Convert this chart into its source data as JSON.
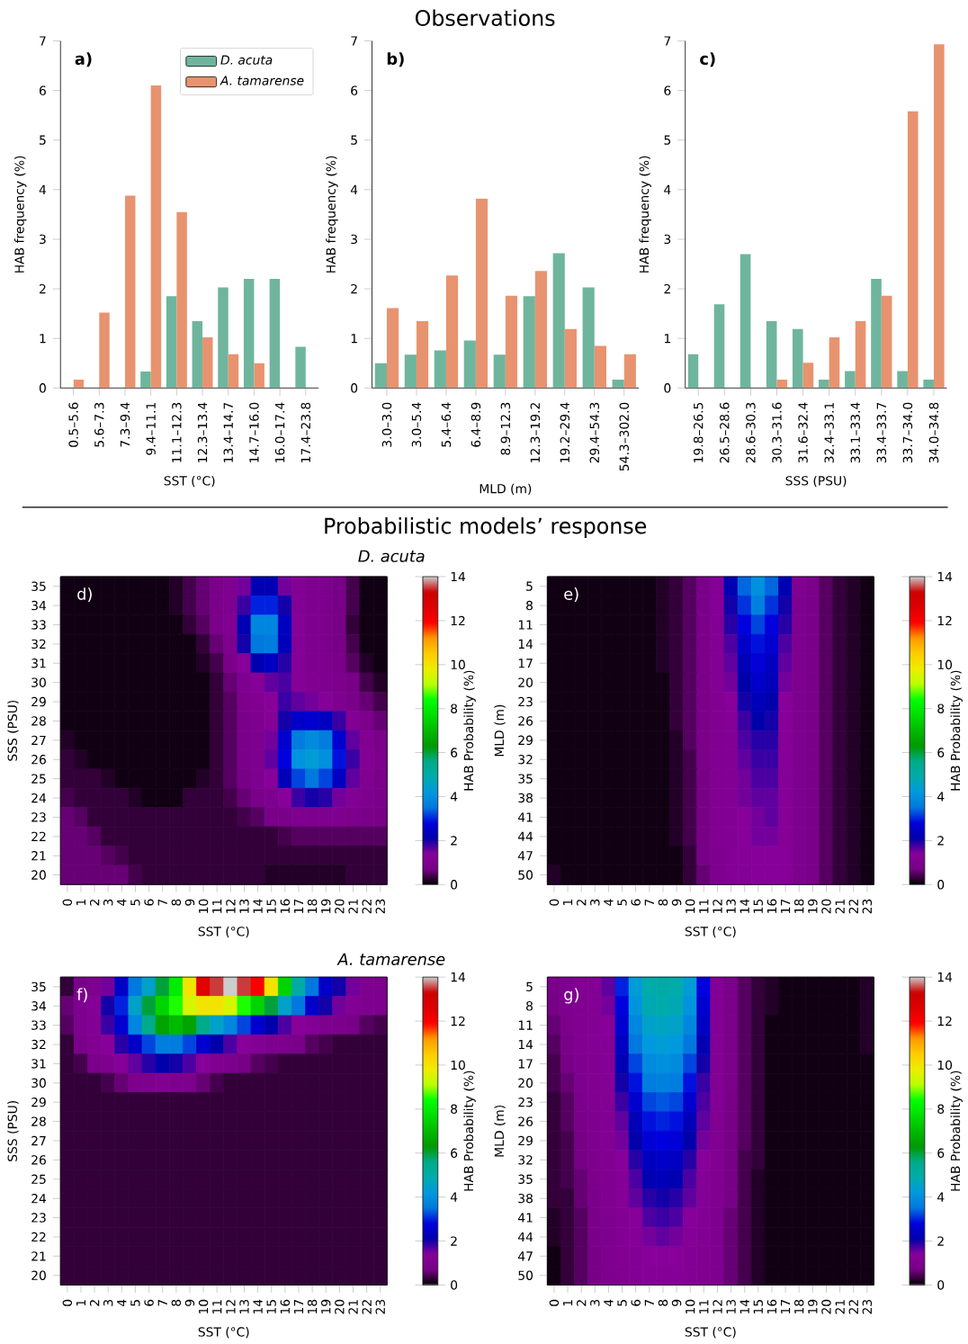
{
  "chart_data": [
    {
      "type": "bar",
      "categories": [
        "0.5–5.6",
        "5.6–7.3",
        "7.3–9.4",
        "9.4–11.1",
        "11.1–12.3",
        "12.3–13.4",
        "13.4–14.7",
        "14.7–16.0",
        "16.0–17.4",
        "17.4–23.8"
      ],
      "series": [
        {
          "name": "D. acuta",
          "color": "#6fb59d",
          "values": [
            0,
            0,
            0,
            0.33,
            1.85,
            1.35,
            2.03,
            2.2,
            2.2,
            0.83
          ]
        },
        {
          "name": "A. tamarense",
          "color": "#e8936f",
          "values": [
            0.17,
            1.52,
            3.88,
            6.1,
            3.55,
            1.02,
            0.68,
            0.5,
            0,
            0
          ]
        }
      ],
      "ylim": [
        0,
        7
      ],
      "yticks": [
        0,
        1,
        2,
        3,
        4,
        5,
        6,
        7
      ],
      "xlabel": "SST (°C)",
      "ylabel": "HAB frequency (%)",
      "legend": "top right",
      "annotations": [
        "a)"
      ]
    },
    {
      "type": "bar",
      "title": "Observations",
      "categories": [
        "3.0–3.0",
        "3.0–5.4",
        "5.4–6.4",
        "6.4–8.9",
        "8.9–12.3",
        "12.3–19.2",
        "19.2–29.4",
        "29.4–54.3",
        "54.3–302.0"
      ],
      "series": [
        {
          "color": "#6fb59d",
          "values": [
            0.5,
            0.67,
            0.76,
            0.96,
            0.67,
            1.85,
            2.72,
            2.03,
            0.17
          ]
        },
        {
          "color": "#e8936f",
          "values": [
            1.61,
            1.35,
            2.27,
            3.82,
            1.86,
            2.36,
            1.19,
            0.85,
            0.68
          ]
        }
      ],
      "ylim": [
        0,
        7
      ],
      "yticks": [
        0,
        1,
        2,
        3,
        4,
        5,
        6,
        7
      ],
      "xlabel": "MLD (m)",
      "ylabel": "HAB frequency (%)",
      "annotations": [
        "b)"
      ]
    },
    {
      "type": "bar",
      "categories": [
        "19.8–26.5",
        "26.5–28.6",
        "28.6–30.3",
        "30.3–31.6",
        "31.6–32.4",
        "32.4–33.1",
        "33.1–33.4",
        "33.4–33.7",
        "33.7–34.0",
        "34.0–34.8"
      ],
      "series": [
        {
          "color": "#6fb59d",
          "values": [
            0.68,
            1.69,
            2.7,
            1.35,
            1.19,
            0.17,
            0.34,
            2.2,
            0.34,
            0.17
          ]
        },
        {
          "color": "#e8936f",
          "values": [
            0,
            0,
            0,
            0.17,
            0.51,
            1.02,
            1.35,
            1.86,
            5.58,
            6.93
          ]
        }
      ],
      "ylim": [
        0,
        7
      ],
      "yticks": [
        0,
        1,
        2,
        3,
        4,
        5,
        6,
        7
      ],
      "xlabel": "SSS (PSU)",
      "ylabel": "HAB frequency (%)",
      "annotations": [
        "c)"
      ]
    },
    {
      "type": "heatmap",
      "title": "Probabilistic models’ response",
      "subtitle": "D. acuta",
      "categories": [
        "0",
        "1",
        "2",
        "3",
        "4",
        "5",
        "6",
        "7",
        "8",
        "9",
        "10",
        "11",
        "12",
        "13",
        "14",
        "15",
        "16",
        "17",
        "18",
        "19",
        "20",
        "21",
        "22",
        "23"
      ],
      "y_categories": [
        "35",
        "34",
        "33",
        "32",
        "31",
        "30",
        "29",
        "28",
        "27",
        "26",
        "25",
        "24",
        "23",
        "22",
        "21",
        "20"
      ],
      "cells": [
        [
          0.1,
          0.1,
          0.1,
          0.1,
          0.1,
          0.1,
          0.1,
          0.1,
          0.2,
          0.4,
          0.6,
          0.8,
          1.0,
          1.5,
          2.2,
          2.2,
          1.5,
          1.2,
          1.0,
          0.9,
          0.7,
          0.4,
          0.1,
          0.1
        ],
        [
          0.1,
          0.1,
          0.1,
          0.1,
          0.1,
          0.1,
          0.1,
          0.1,
          0.2,
          0.4,
          0.6,
          0.8,
          1.0,
          1.8,
          3.0,
          3.0,
          2.0,
          1.2,
          1.0,
          0.9,
          0.7,
          0.4,
          0.1,
          0.1
        ],
        [
          0.1,
          0.1,
          0.1,
          0.1,
          0.1,
          0.1,
          0.1,
          0.1,
          0.1,
          0.3,
          0.5,
          0.8,
          1.1,
          2.2,
          3.8,
          3.8,
          2.4,
          1.3,
          1.0,
          0.9,
          0.7,
          0.3,
          0.1,
          0.1
        ],
        [
          0.1,
          0.1,
          0.1,
          0.1,
          0.1,
          0.1,
          0.1,
          0.1,
          0.1,
          0.1,
          0.3,
          0.6,
          1.0,
          2.0,
          3.5,
          3.6,
          2.3,
          1.3,
          1.0,
          0.9,
          0.7,
          0.4,
          0.1,
          0.1
        ],
        [
          0.1,
          0.1,
          0.1,
          0.1,
          0.1,
          0.1,
          0.1,
          0.1,
          0.1,
          0.1,
          0.2,
          0.4,
          0.8,
          1.4,
          2.2,
          2.4,
          1.9,
          1.3,
          1.0,
          0.9,
          0.8,
          0.5,
          0.2,
          0.1
        ],
        [
          0.1,
          0.1,
          0.1,
          0.1,
          0.1,
          0.1,
          0.1,
          0.1,
          0.1,
          0.1,
          0.1,
          0.3,
          0.6,
          1.0,
          1.3,
          1.6,
          1.7,
          1.3,
          1.1,
          1.0,
          0.9,
          0.7,
          0.4,
          0.2
        ],
        [
          0.1,
          0.1,
          0.1,
          0.1,
          0.1,
          0.1,
          0.1,
          0.1,
          0.1,
          0.1,
          0.1,
          0.3,
          0.5,
          0.9,
          1.1,
          1.4,
          1.8,
          1.6,
          1.5,
          1.3,
          1.0,
          0.8,
          0.6,
          0.4
        ],
        [
          0.1,
          0.1,
          0.1,
          0.1,
          0.1,
          0.1,
          0.1,
          0.1,
          0.1,
          0.1,
          0.1,
          0.3,
          0.5,
          0.8,
          1.0,
          1.3,
          2.0,
          2.5,
          2.6,
          2.4,
          1.8,
          1.2,
          0.9,
          0.6
        ],
        [
          0.2,
          0.1,
          0.1,
          0.1,
          0.1,
          0.1,
          0.1,
          0.1,
          0.1,
          0.1,
          0.1,
          0.3,
          0.5,
          0.8,
          1.0,
          1.5,
          2.6,
          3.6,
          3.9,
          3.6,
          2.6,
          1.6,
          1.1,
          0.8
        ],
        [
          0.3,
          0.2,
          0.1,
          0.1,
          0.1,
          0.1,
          0.1,
          0.1,
          0.1,
          0.1,
          0.1,
          0.3,
          0.5,
          0.8,
          1.0,
          1.6,
          2.8,
          4.1,
          4.3,
          4.0,
          2.9,
          1.8,
          1.2,
          0.9
        ],
        [
          0.3,
          0.3,
          0.3,
          0.2,
          0.1,
          0.1,
          0.1,
          0.1,
          0.1,
          0.1,
          0.2,
          0.3,
          0.5,
          0.7,
          1.0,
          1.4,
          2.3,
          3.2,
          3.5,
          3.2,
          2.4,
          1.6,
          1.1,
          0.8
        ],
        [
          0.4,
          0.3,
          0.3,
          0.3,
          0.3,
          0.2,
          0.1,
          0.1,
          0.1,
          0.3,
          0.3,
          0.3,
          0.4,
          0.6,
          0.8,
          1.0,
          1.4,
          1.8,
          2.0,
          1.9,
          1.5,
          1.2,
          1.0,
          0.8
        ],
        [
          0.6,
          0.5,
          0.3,
          0.3,
          0.3,
          0.3,
          0.3,
          0.3,
          0.3,
          0.3,
          0.3,
          0.3,
          0.3,
          0.4,
          0.5,
          0.7,
          0.8,
          1.0,
          1.0,
          1.0,
          1.0,
          0.9,
          0.8,
          0.7
        ],
        [
          0.6,
          0.6,
          0.5,
          0.3,
          0.3,
          0.3,
          0.3,
          0.3,
          0.3,
          0.3,
          0.3,
          0.3,
          0.3,
          0.3,
          0.3,
          0.3,
          0.4,
          0.5,
          0.5,
          0.5,
          0.5,
          0.5,
          0.5,
          0.5
        ],
        [
          0.6,
          0.6,
          0.6,
          0.5,
          0.4,
          0.3,
          0.3,
          0.3,
          0.3,
          0.3,
          0.3,
          0.3,
          0.3,
          0.3,
          0.3,
          0.3,
          0.3,
          0.3,
          0.3,
          0.3,
          0.3,
          0.3,
          0.3,
          0.3
        ],
        [
          0.6,
          0.6,
          0.6,
          0.6,
          0.6,
          0.4,
          0.3,
          0.3,
          0.3,
          0.3,
          0.3,
          0.3,
          0.3,
          0.3,
          0.3,
          0.2,
          0.2,
          0.2,
          0.2,
          0.2,
          0.2,
          0.3,
          0.3,
          0.3
        ]
      ],
      "clim": [
        0,
        14
      ],
      "cticks": [
        0,
        2,
        4,
        6,
        8,
        10,
        12,
        14
      ],
      "clabel": "HAB Probability (%)",
      "xlabel": "SST (°C)",
      "ylabel": "SSS (PSU)",
      "annotations": [
        "d)"
      ]
    },
    {
      "type": "heatmap",
      "categories": [
        "0",
        "1",
        "2",
        "3",
        "4",
        "5",
        "6",
        "7",
        "8",
        "9",
        "10",
        "11",
        "12",
        "13",
        "14",
        "15",
        "16",
        "17",
        "18",
        "19",
        "20",
        "21",
        "22",
        "23"
      ],
      "y_categories": [
        "5",
        "8",
        "11",
        "14",
        "17",
        "20",
        "23",
        "26",
        "29",
        "32",
        "35",
        "38",
        "41",
        "44",
        "47",
        "50"
      ],
      "cells": [
        [
          0.1,
          0.1,
          0.1,
          0.1,
          0.1,
          0.1,
          0.1,
          0.1,
          0.2,
          0.3,
          0.5,
          0.8,
          1.3,
          2.2,
          3.4,
          4.0,
          3.4,
          2.2,
          1.1,
          0.8,
          0.5,
          0.3,
          0.2,
          0.1
        ],
        [
          0.1,
          0.1,
          0.1,
          0.1,
          0.1,
          0.1,
          0.1,
          0.1,
          0.2,
          0.3,
          0.5,
          0.8,
          1.3,
          2.0,
          3.1,
          3.7,
          3.1,
          2.0,
          1.0,
          0.8,
          0.5,
          0.3,
          0.2,
          0.1
        ],
        [
          0.1,
          0.1,
          0.1,
          0.1,
          0.1,
          0.1,
          0.1,
          0.1,
          0.2,
          0.3,
          0.5,
          0.8,
          1.2,
          1.9,
          2.8,
          3.2,
          2.8,
          1.9,
          1.0,
          0.8,
          0.5,
          0.3,
          0.2,
          0.1
        ],
        [
          0.1,
          0.1,
          0.1,
          0.1,
          0.1,
          0.1,
          0.1,
          0.1,
          0.2,
          0.3,
          0.5,
          0.8,
          1.2,
          1.7,
          2.5,
          2.9,
          2.6,
          1.7,
          1.0,
          0.8,
          0.5,
          0.3,
          0.2,
          0.1
        ],
        [
          0.1,
          0.1,
          0.1,
          0.1,
          0.1,
          0.1,
          0.1,
          0.1,
          0.2,
          0.3,
          0.5,
          0.8,
          1.2,
          1.6,
          2.3,
          2.7,
          2.4,
          1.6,
          1.0,
          0.8,
          0.5,
          0.3,
          0.2,
          0.1
        ],
        [
          0.1,
          0.1,
          0.1,
          0.1,
          0.1,
          0.1,
          0.1,
          0.1,
          0.1,
          0.3,
          0.5,
          0.8,
          1.2,
          1.5,
          2.1,
          2.5,
          2.3,
          1.5,
          1.0,
          0.8,
          0.5,
          0.3,
          0.2,
          0.1
        ],
        [
          0.1,
          0.1,
          0.1,
          0.1,
          0.1,
          0.1,
          0.1,
          0.1,
          0.1,
          0.3,
          0.5,
          0.8,
          1.1,
          1.4,
          2.0,
          2.3,
          2.1,
          1.4,
          1.0,
          0.8,
          0.5,
          0.3,
          0.2,
          0.1
        ],
        [
          0.1,
          0.1,
          0.1,
          0.1,
          0.1,
          0.1,
          0.1,
          0.1,
          0.1,
          0.3,
          0.5,
          0.8,
          1.1,
          1.3,
          1.8,
          2.1,
          2.0,
          1.4,
          1.0,
          0.8,
          0.5,
          0.3,
          0.2,
          0.1
        ],
        [
          0.1,
          0.1,
          0.1,
          0.1,
          0.1,
          0.1,
          0.1,
          0.1,
          0.1,
          0.2,
          0.5,
          0.8,
          1.1,
          1.2,
          1.7,
          1.9,
          1.9,
          1.3,
          1.0,
          0.8,
          0.5,
          0.3,
          0.2,
          0.1
        ],
        [
          0.1,
          0.1,
          0.1,
          0.1,
          0.1,
          0.1,
          0.1,
          0.1,
          0.1,
          0.2,
          0.4,
          0.8,
          1.1,
          1.2,
          1.6,
          1.8,
          1.8,
          1.3,
          1.0,
          0.8,
          0.5,
          0.3,
          0.2,
          0.1
        ],
        [
          0.1,
          0.1,
          0.1,
          0.1,
          0.1,
          0.1,
          0.1,
          0.1,
          0.1,
          0.2,
          0.4,
          0.7,
          1.1,
          1.2,
          1.5,
          1.7,
          1.7,
          1.3,
          1.0,
          0.8,
          0.5,
          0.3,
          0.2,
          0.1
        ],
        [
          0.1,
          0.1,
          0.1,
          0.1,
          0.1,
          0.1,
          0.1,
          0.1,
          0.1,
          0.2,
          0.4,
          0.7,
          1.1,
          1.2,
          1.5,
          1.6,
          1.6,
          1.3,
          1.0,
          0.8,
          0.5,
          0.3,
          0.2,
          0.1
        ],
        [
          0.1,
          0.1,
          0.1,
          0.1,
          0.1,
          0.1,
          0.1,
          0.1,
          0.1,
          0.2,
          0.4,
          0.7,
          1.1,
          1.2,
          1.4,
          1.5,
          1.6,
          1.3,
          1.0,
          0.8,
          0.5,
          0.3,
          0.2,
          0.1
        ],
        [
          0.1,
          0.1,
          0.1,
          0.1,
          0.1,
          0.1,
          0.1,
          0.1,
          0.1,
          0.2,
          0.4,
          0.7,
          1.1,
          1.2,
          1.4,
          1.5,
          1.5,
          1.3,
          1.0,
          0.8,
          0.5,
          0.3,
          0.2,
          0.1
        ],
        [
          0.1,
          0.1,
          0.1,
          0.1,
          0.1,
          0.1,
          0.1,
          0.1,
          0.1,
          0.1,
          0.3,
          0.7,
          1.0,
          1.2,
          1.3,
          1.4,
          1.4,
          1.3,
          1.0,
          0.8,
          0.5,
          0.3,
          0.2,
          0.1
        ],
        [
          0.2,
          0.1,
          0.1,
          0.1,
          0.1,
          0.1,
          0.1,
          0.1,
          0.1,
          0.1,
          0.3,
          0.6,
          1.0,
          1.2,
          1.3,
          1.4,
          1.4,
          1.3,
          1.0,
          0.8,
          0.5,
          0.3,
          0.2,
          0.1
        ]
      ],
      "clim": [
        0,
        14
      ],
      "cticks": [
        0,
        2,
        4,
        6,
        8,
        10,
        12,
        14
      ],
      "clabel": "HAB Probability (%)",
      "xlabel": "SST (°C)",
      "ylabel": "MLD (m)",
      "annotations": [
        "e)"
      ]
    },
    {
      "type": "heatmap",
      "subtitle": "A. tamarense",
      "categories": [
        "0",
        "1",
        "2",
        "3",
        "4",
        "5",
        "6",
        "7",
        "8",
        "9",
        "10",
        "11",
        "12",
        "13",
        "14",
        "15",
        "16",
        "17",
        "18",
        "19",
        "20",
        "21",
        "22",
        "23"
      ],
      "y_categories": [
        "35",
        "34",
        "33",
        "32",
        "31",
        "30",
        "29",
        "28",
        "27",
        "26",
        "25",
        "24",
        "23",
        "22",
        "21",
        "20"
      ],
      "cells": [
        [
          0.3,
          0.8,
          1.0,
          1.5,
          2.5,
          3.5,
          4.5,
          6.0,
          8.0,
          10.0,
          12.5,
          13.5,
          14.0,
          13.5,
          12.0,
          10.0,
          7.5,
          5.0,
          3.5,
          2.5,
          2.0,
          1.5,
          1.0,
          0.9
        ],
        [
          0.6,
          1.0,
          1.3,
          2.0,
          3.0,
          4.5,
          6.0,
          7.5,
          8.5,
          9.5,
          10.0,
          10.0,
          9.5,
          8.5,
          7.5,
          6.0,
          4.5,
          3.5,
          2.5,
          2.0,
          1.5,
          1.2,
          1.0,
          0.9
        ],
        [
          0.5,
          1.0,
          1.2,
          1.8,
          2.6,
          3.8,
          5.5,
          6.5,
          7.0,
          6.5,
          5.5,
          4.5,
          3.8,
          3.2,
          2.6,
          2.1,
          1.7,
          1.4,
          1.2,
          1.0,
          0.9,
          0.7,
          0.5,
          0.4
        ],
        [
          0.3,
          0.8,
          1.1,
          1.4,
          1.9,
          2.5,
          3.2,
          3.6,
          3.6,
          3.2,
          2.6,
          2.1,
          1.7,
          1.4,
          1.2,
          1.0,
          0.9,
          0.8,
          0.5,
          0.4,
          0.3,
          0.3,
          0.3,
          0.3
        ],
        [
          0.3,
          0.4,
          0.8,
          1.0,
          1.3,
          1.6,
          1.9,
          2.1,
          2.0,
          1.7,
          1.4,
          1.1,
          0.9,
          0.7,
          0.5,
          0.4,
          0.3,
          0.3,
          0.3,
          0.3,
          0.3,
          0.3,
          0.3,
          0.3
        ],
        [
          0.3,
          0.3,
          0.3,
          0.4,
          0.6,
          0.9,
          1.0,
          1.1,
          1.0,
          0.9,
          0.6,
          0.4,
          0.3,
          0.3,
          0.3,
          0.3,
          0.3,
          0.3,
          0.3,
          0.3,
          0.3,
          0.3,
          0.3,
          0.3
        ],
        [
          0.3,
          0.3,
          0.3,
          0.3,
          0.3,
          0.3,
          0.3,
          0.3,
          0.3,
          0.3,
          0.3,
          0.3,
          0.3,
          0.3,
          0.3,
          0.3,
          0.3,
          0.3,
          0.3,
          0.3,
          0.3,
          0.3,
          0.3,
          0.3
        ],
        [
          0.3,
          0.3,
          0.3,
          0.3,
          0.3,
          0.3,
          0.3,
          0.3,
          0.3,
          0.3,
          0.3,
          0.3,
          0.3,
          0.3,
          0.3,
          0.3,
          0.3,
          0.3,
          0.3,
          0.3,
          0.3,
          0.3,
          0.3,
          0.3
        ],
        [
          0.3,
          0.3,
          0.3,
          0.3,
          0.3,
          0.3,
          0.3,
          0.3,
          0.3,
          0.3,
          0.3,
          0.3,
          0.3,
          0.3,
          0.3,
          0.3,
          0.3,
          0.3,
          0.3,
          0.3,
          0.3,
          0.3,
          0.3,
          0.3
        ],
        [
          0.3,
          0.3,
          0.3,
          0.3,
          0.3,
          0.3,
          0.3,
          0.3,
          0.3,
          0.3,
          0.3,
          0.3,
          0.3,
          0.3,
          0.3,
          0.3,
          0.3,
          0.3,
          0.3,
          0.3,
          0.3,
          0.3,
          0.3,
          0.3
        ],
        [
          0.3,
          0.3,
          0.3,
          0.3,
          0.3,
          0.3,
          0.3,
          0.3,
          0.3,
          0.3,
          0.3,
          0.3,
          0.3,
          0.3,
          0.3,
          0.3,
          0.3,
          0.3,
          0.3,
          0.3,
          0.3,
          0.3,
          0.3,
          0.3
        ],
        [
          0.3,
          0.3,
          0.3,
          0.3,
          0.3,
          0.3,
          0.3,
          0.3,
          0.3,
          0.3,
          0.3,
          0.3,
          0.3,
          0.3,
          0.3,
          0.3,
          0.3,
          0.3,
          0.3,
          0.3,
          0.3,
          0.3,
          0.3,
          0.3
        ],
        [
          0.3,
          0.3,
          0.3,
          0.3,
          0.3,
          0.3,
          0.3,
          0.3,
          0.3,
          0.3,
          0.3,
          0.3,
          0.3,
          0.3,
          0.3,
          0.3,
          0.3,
          0.3,
          0.3,
          0.3,
          0.3,
          0.3,
          0.3,
          0.3
        ],
        [
          0.3,
          0.3,
          0.3,
          0.3,
          0.3,
          0.3,
          0.3,
          0.3,
          0.3,
          0.3,
          0.3,
          0.3,
          0.3,
          0.3,
          0.3,
          0.3,
          0.3,
          0.3,
          0.3,
          0.3,
          0.3,
          0.3,
          0.3,
          0.3
        ],
        [
          0.3,
          0.3,
          0.3,
          0.3,
          0.3,
          0.3,
          0.3,
          0.3,
          0.3,
          0.3,
          0.3,
          0.3,
          0.3,
          0.3,
          0.3,
          0.3,
          0.3,
          0.3,
          0.3,
          0.3,
          0.3,
          0.3,
          0.3,
          0.3
        ],
        [
          0.3,
          0.3,
          0.3,
          0.3,
          0.3,
          0.3,
          0.3,
          0.3,
          0.3,
          0.3,
          0.3,
          0.3,
          0.3,
          0.3,
          0.3,
          0.3,
          0.3,
          0.3,
          0.3,
          0.3,
          0.3,
          0.3,
          0.3,
          0.3
        ]
      ],
      "clim": [
        0,
        14
      ],
      "cticks": [
        0,
        2,
        4,
        6,
        8,
        10,
        12,
        14
      ],
      "clabel": "HAB Probability (%)",
      "xlabel": "SST (°C)",
      "ylabel": "SSS (PSU)",
      "annotations": [
        "f)"
      ]
    },
    {
      "type": "heatmap",
      "categories": [
        "0",
        "1",
        "2",
        "3",
        "4",
        "5",
        "6",
        "7",
        "8",
        "9",
        "10",
        "11",
        "12",
        "13",
        "14",
        "15",
        "16",
        "17",
        "18",
        "19",
        "20",
        "21",
        "22",
        "23"
      ],
      "y_categories": [
        "5",
        "8",
        "11",
        "14",
        "17",
        "20",
        "23",
        "26",
        "29",
        "32",
        "35",
        "38",
        "41",
        "44",
        "47",
        "50"
      ],
      "cells": [
        [
          0.8,
          1.0,
          1.1,
          1.2,
          1.6,
          3.0,
          4.3,
          4.9,
          5.0,
          4.9,
          4.3,
          2.8,
          1.2,
          0.8,
          0.5,
          0.3,
          0.2,
          0.1,
          0.1,
          0.1,
          0.1,
          0.1,
          0.1,
          0.2
        ],
        [
          0.7,
          1.0,
          1.1,
          1.2,
          1.5,
          2.8,
          4.1,
          4.8,
          4.9,
          4.8,
          4.1,
          2.6,
          1.2,
          0.8,
          0.5,
          0.3,
          0.2,
          0.1,
          0.1,
          0.1,
          0.1,
          0.1,
          0.1,
          0.2
        ],
        [
          0.6,
          0.9,
          1.1,
          1.2,
          1.4,
          2.6,
          3.8,
          4.5,
          4.6,
          4.5,
          3.8,
          2.4,
          1.2,
          0.8,
          0.5,
          0.3,
          0.1,
          0.1,
          0.1,
          0.1,
          0.1,
          0.1,
          0.1,
          0.2
        ],
        [
          0.5,
          0.8,
          1.1,
          1.2,
          1.3,
          2.4,
          3.5,
          4.2,
          4.3,
          4.2,
          3.5,
          2.2,
          1.2,
          0.8,
          0.5,
          0.3,
          0.1,
          0.1,
          0.1,
          0.1,
          0.1,
          0.1,
          0.1,
          0.2
        ],
        [
          0.4,
          0.7,
          1.0,
          1.1,
          1.3,
          2.2,
          3.2,
          3.9,
          4.0,
          3.9,
          3.2,
          2.0,
          1.2,
          0.8,
          0.5,
          0.3,
          0.1,
          0.1,
          0.1,
          0.1,
          0.1,
          0.1,
          0.1,
          0.1
        ],
        [
          0.4,
          0.6,
          1.0,
          1.1,
          1.3,
          2.0,
          2.9,
          3.6,
          3.7,
          3.6,
          2.9,
          1.8,
          1.2,
          0.8,
          0.5,
          0.3,
          0.1,
          0.1,
          0.1,
          0.1,
          0.1,
          0.1,
          0.1,
          0.1
        ],
        [
          0.3,
          0.5,
          0.9,
          1.1,
          1.2,
          1.8,
          2.6,
          3.2,
          3.3,
          3.2,
          2.6,
          1.7,
          1.2,
          0.7,
          0.5,
          0.3,
          0.1,
          0.1,
          0.1,
          0.1,
          0.1,
          0.1,
          0.1,
          0.1
        ],
        [
          0.3,
          0.5,
          0.8,
          1.0,
          1.2,
          1.6,
          2.3,
          2.9,
          3.0,
          2.9,
          2.3,
          1.6,
          1.1,
          0.7,
          0.5,
          0.3,
          0.1,
          0.1,
          0.1,
          0.1,
          0.1,
          0.1,
          0.1,
          0.1
        ],
        [
          0.3,
          0.4,
          0.7,
          1.0,
          1.2,
          1.5,
          2.1,
          2.7,
          2.8,
          2.7,
          2.1,
          1.5,
          1.1,
          0.7,
          0.5,
          0.3,
          0.1,
          0.1,
          0.1,
          0.1,
          0.1,
          0.1,
          0.1,
          0.1
        ],
        [
          0.3,
          0.4,
          0.7,
          0.9,
          1.1,
          1.4,
          1.9,
          2.4,
          2.5,
          2.4,
          1.9,
          1.4,
          1.1,
          0.7,
          0.4,
          0.3,
          0.1,
          0.1,
          0.1,
          0.1,
          0.1,
          0.1,
          0.1,
          0.1
        ],
        [
          0.3,
          0.4,
          0.6,
          0.9,
          1.1,
          1.3,
          1.7,
          2.2,
          2.3,
          2.2,
          1.7,
          1.3,
          1.1,
          0.7,
          0.4,
          0.2,
          0.1,
          0.1,
          0.1,
          0.1,
          0.1,
          0.1,
          0.1,
          0.1
        ],
        [
          0.3,
          0.3,
          0.6,
          0.8,
          1.1,
          1.3,
          1.6,
          1.9,
          2.0,
          1.9,
          1.6,
          1.3,
          1.1,
          0.7,
          0.4,
          0.2,
          0.1,
          0.1,
          0.1,
          0.1,
          0.1,
          0.1,
          0.1,
          0.1
        ],
        [
          0.2,
          0.3,
          0.5,
          0.8,
          1.0,
          1.2,
          1.4,
          1.7,
          1.8,
          1.7,
          1.4,
          1.2,
          1.0,
          0.6,
          0.4,
          0.2,
          0.1,
          0.1,
          0.1,
          0.1,
          0.1,
          0.1,
          0.1,
          0.1
        ],
        [
          0.2,
          0.3,
          0.5,
          0.8,
          1.0,
          1.2,
          1.3,
          1.5,
          1.6,
          1.5,
          1.3,
          1.2,
          1.0,
          0.6,
          0.4,
          0.2,
          0.1,
          0.1,
          0.1,
          0.1,
          0.1,
          0.1,
          0.1,
          0.1
        ],
        [
          0.1,
          0.3,
          0.5,
          0.7,
          1.0,
          1.1,
          1.2,
          1.4,
          1.4,
          1.4,
          1.2,
          1.1,
          1.0,
          0.6,
          0.4,
          0.2,
          0.1,
          0.1,
          0.1,
          0.1,
          0.1,
          0.1,
          0.1,
          0.1
        ],
        [
          0.1,
          0.3,
          0.5,
          0.7,
          1.0,
          1.1,
          1.2,
          1.3,
          1.3,
          1.3,
          1.2,
          1.1,
          1.0,
          0.6,
          0.4,
          0.2,
          0.1,
          0.1,
          0.1,
          0.1,
          0.1,
          0.1,
          0.1,
          0.1
        ]
      ],
      "clim": [
        0,
        14
      ],
      "cticks": [
        0,
        2,
        4,
        6,
        8,
        10,
        12,
        14
      ],
      "clabel": "HAB Probability (%)",
      "xlabel": "SST (°C)",
      "ylabel": "MLD (m)",
      "annotations": [
        "g)"
      ]
    }
  ]
}
